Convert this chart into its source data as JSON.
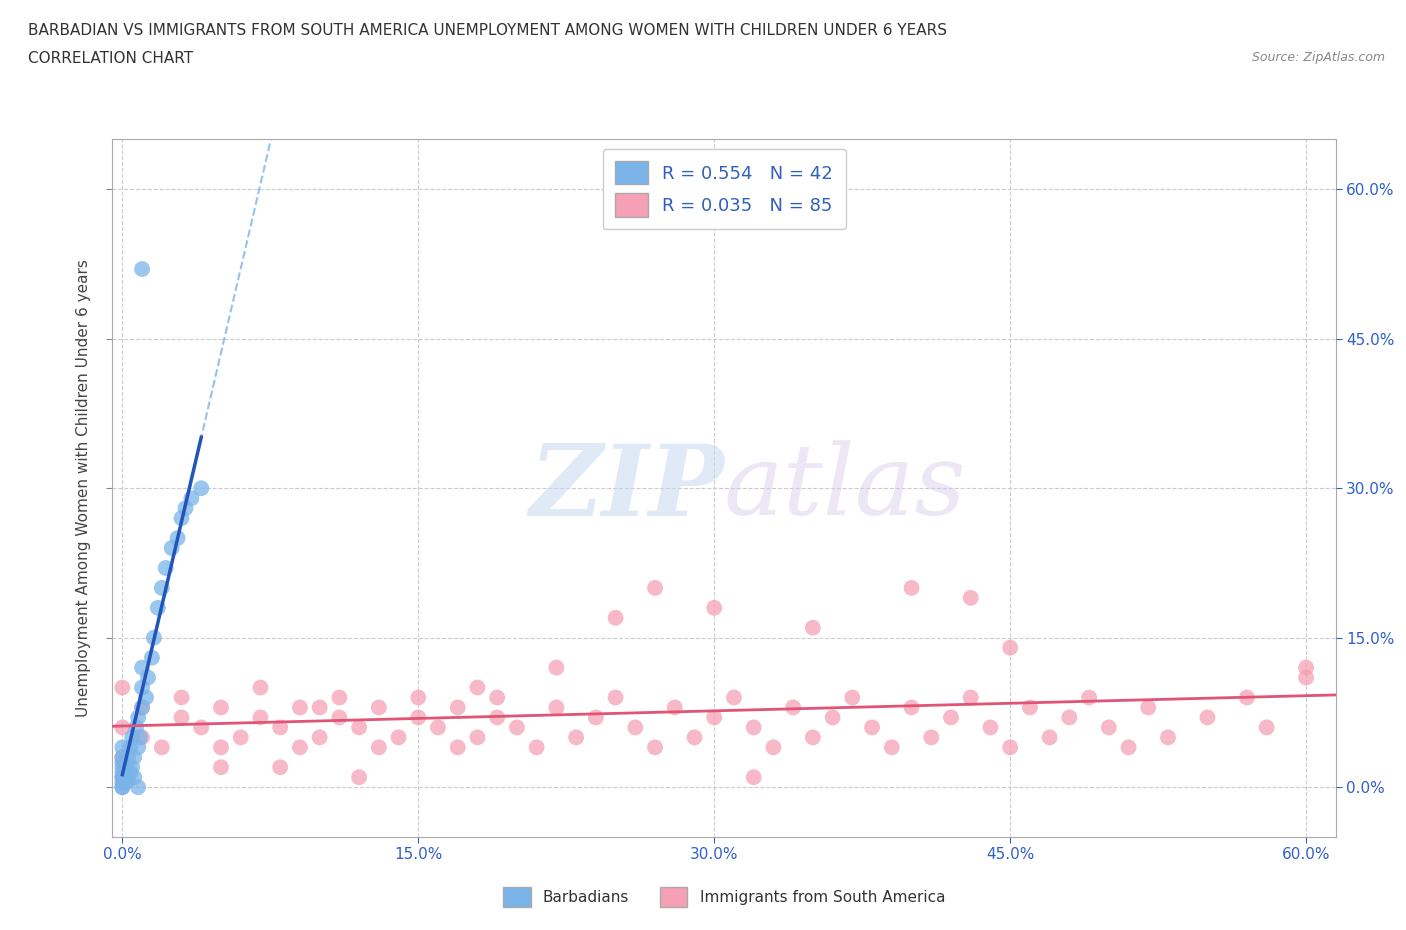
{
  "title_line1": "BARBADIAN VS IMMIGRANTS FROM SOUTH AMERICA UNEMPLOYMENT AMONG WOMEN WITH CHILDREN UNDER 6 YEARS",
  "title_line2": "CORRELATION CHART",
  "source": "Source: ZipAtlas.com",
  "ylabel": "Unemployment Among Women with Children Under 6 years",
  "tick_vals": [
    0.0,
    0.15,
    0.3,
    0.45,
    0.6
  ],
  "tick_labels": [
    "0.0%",
    "15.0%",
    "30.0%",
    "45.0%",
    "60.0%"
  ],
  "xlim": [
    -0.005,
    0.615
  ],
  "ylim": [
    -0.05,
    0.65
  ],
  "R_blue": 0.554,
  "N_blue": 42,
  "R_pink": 0.035,
  "N_pink": 85,
  "blue_color": "#7ab3e8",
  "pink_color": "#f5a0b5",
  "trend_blue_solid": "#2255bb",
  "trend_blue_dash": "#7ab3e8",
  "trend_pink": "#e05575",
  "grid_color": "#cccccc",
  "watermark_zip": "ZIP",
  "watermark_atlas": "atlas",
  "legend_label_blue": "Barbadians",
  "legend_label_pink": "Immigrants from South America",
  "blue_x": [
    0.0,
    0.0,
    0.0,
    0.0,
    0.0,
    0.0,
    0.0,
    0.0,
    0.0,
    0.0,
    0.002,
    0.002,
    0.003,
    0.003,
    0.004,
    0.004,
    0.005,
    0.005,
    0.006,
    0.006,
    0.007,
    0.008,
    0.008,
    0.009,
    0.01,
    0.01,
    0.01,
    0.012,
    0.013,
    0.015,
    0.016,
    0.018,
    0.02,
    0.022,
    0.025,
    0.028,
    0.03,
    0.032,
    0.035,
    0.04,
    0.01,
    0.008
  ],
  "blue_y": [
    0.0,
    0.0,
    0.005,
    0.01,
    0.01,
    0.015,
    0.02,
    0.025,
    0.03,
    0.04,
    0.005,
    0.02,
    0.01,
    0.03,
    0.015,
    0.04,
    0.02,
    0.05,
    0.01,
    0.03,
    0.06,
    0.04,
    0.07,
    0.05,
    0.08,
    0.1,
    0.12,
    0.09,
    0.11,
    0.13,
    0.15,
    0.18,
    0.2,
    0.22,
    0.24,
    0.25,
    0.27,
    0.28,
    0.29,
    0.3,
    0.52,
    0.0
  ],
  "pink_x": [
    0.0,
    0.0,
    0.0,
    0.01,
    0.01,
    0.02,
    0.03,
    0.03,
    0.04,
    0.05,
    0.05,
    0.06,
    0.07,
    0.07,
    0.08,
    0.09,
    0.09,
    0.1,
    0.11,
    0.11,
    0.12,
    0.13,
    0.13,
    0.14,
    0.15,
    0.15,
    0.16,
    0.17,
    0.17,
    0.18,
    0.19,
    0.19,
    0.2,
    0.21,
    0.22,
    0.23,
    0.24,
    0.25,
    0.26,
    0.27,
    0.28,
    0.29,
    0.3,
    0.31,
    0.32,
    0.33,
    0.34,
    0.35,
    0.36,
    0.37,
    0.38,
    0.39,
    0.4,
    0.41,
    0.42,
    0.43,
    0.44,
    0.45,
    0.46,
    0.47,
    0.48,
    0.49,
    0.5,
    0.51,
    0.52,
    0.53,
    0.55,
    0.57,
    0.58,
    0.6,
    0.25,
    0.3,
    0.27,
    0.35,
    0.4,
    0.43,
    0.45,
    0.22,
    0.18,
    0.1,
    0.05,
    0.08,
    0.12,
    0.32,
    0.6
  ],
  "pink_y": [
    0.03,
    0.06,
    0.1,
    0.05,
    0.08,
    0.04,
    0.07,
    0.09,
    0.06,
    0.04,
    0.08,
    0.05,
    0.07,
    0.1,
    0.06,
    0.04,
    0.08,
    0.05,
    0.07,
    0.09,
    0.06,
    0.04,
    0.08,
    0.05,
    0.07,
    0.09,
    0.06,
    0.04,
    0.08,
    0.05,
    0.07,
    0.09,
    0.06,
    0.04,
    0.08,
    0.05,
    0.07,
    0.09,
    0.06,
    0.04,
    0.08,
    0.05,
    0.07,
    0.09,
    0.06,
    0.04,
    0.08,
    0.05,
    0.07,
    0.09,
    0.06,
    0.04,
    0.08,
    0.05,
    0.07,
    0.09,
    0.06,
    0.04,
    0.08,
    0.05,
    0.07,
    0.09,
    0.06,
    0.04,
    0.08,
    0.05,
    0.07,
    0.09,
    0.06,
    0.12,
    0.17,
    0.18,
    0.2,
    0.16,
    0.2,
    0.19,
    0.14,
    0.12,
    0.1,
    0.08,
    0.02,
    0.02,
    0.01,
    0.01,
    0.11
  ]
}
